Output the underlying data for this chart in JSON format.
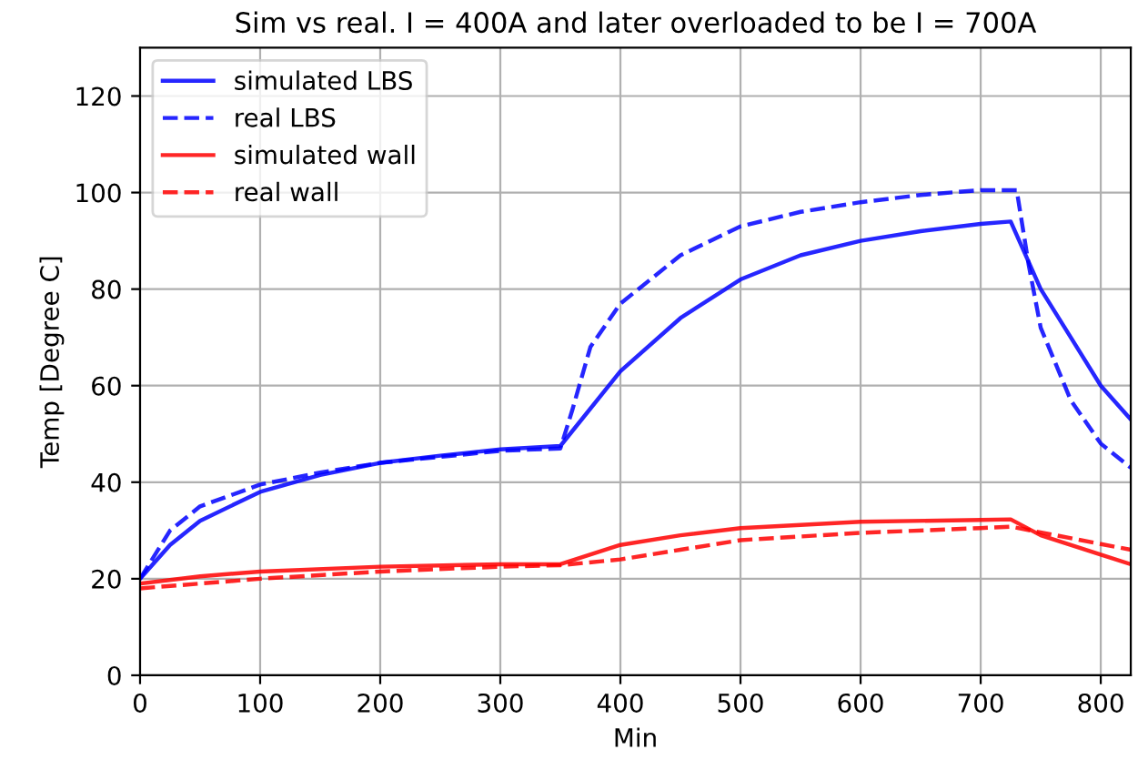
{
  "chart_data": {
    "type": "line",
    "title": "Sim vs real. I = 400A and later overloaded to be I = 700A",
    "xlabel": "Min",
    "ylabel": "Temp [Degree C]",
    "xlim": [
      0,
      825
    ],
    "ylim": [
      0,
      130
    ],
    "xticks": [
      0,
      100,
      200,
      300,
      400,
      500,
      600,
      700,
      800
    ],
    "yticks": [
      0,
      20,
      40,
      60,
      80,
      100,
      120
    ],
    "grid": true,
    "legend": "top left",
    "series": [
      {
        "name": "simulated LBS",
        "color": "#0000ff",
        "line_style": "solid",
        "x": [
          0,
          25,
          50,
          100,
          150,
          200,
          250,
          300,
          350,
          400,
          450,
          500,
          550,
          600,
          650,
          700,
          725,
          750,
          775,
          800,
          825
        ],
        "values": [
          20,
          27,
          32,
          38,
          41.5,
          44,
          45.5,
          46.8,
          47.5,
          63,
          74,
          82,
          87,
          90,
          92,
          93.5,
          94,
          80,
          70,
          60,
          53
        ]
      },
      {
        "name": "real LBS",
        "color": "#0000ff",
        "line_style": "dashed",
        "x": [
          0,
          25,
          50,
          100,
          150,
          200,
          300,
          350,
          360,
          375,
          400,
          450,
          500,
          550,
          600,
          650,
          700,
          730,
          740,
          750,
          775,
          800,
          825
        ],
        "values": [
          20,
          30,
          35,
          39.5,
          42,
          44,
          46.5,
          47,
          55,
          68,
          77,
          87,
          93,
          96,
          98,
          99.5,
          100.5,
          100.5,
          85,
          72,
          57,
          48,
          43
        ]
      },
      {
        "name": "simulated wall",
        "color": "#ff0000",
        "line_style": "solid",
        "x": [
          0,
          50,
          100,
          200,
          300,
          350,
          400,
          450,
          500,
          600,
          700,
          725,
          750,
          800,
          825
        ],
        "values": [
          19,
          20.5,
          21.5,
          22.5,
          23,
          23,
          27,
          29,
          30.5,
          31.8,
          32.2,
          32.3,
          29,
          25,
          23
        ]
      },
      {
        "name": "real wall",
        "color": "#ff0000",
        "line_style": "dashed",
        "x": [
          0,
          100,
          200,
          300,
          350,
          400,
          450,
          500,
          600,
          700,
          725,
          825
        ],
        "values": [
          18,
          20,
          21.5,
          22.5,
          22.8,
          24,
          26,
          28,
          29.5,
          30.5,
          30.8,
          26
        ]
      }
    ]
  }
}
